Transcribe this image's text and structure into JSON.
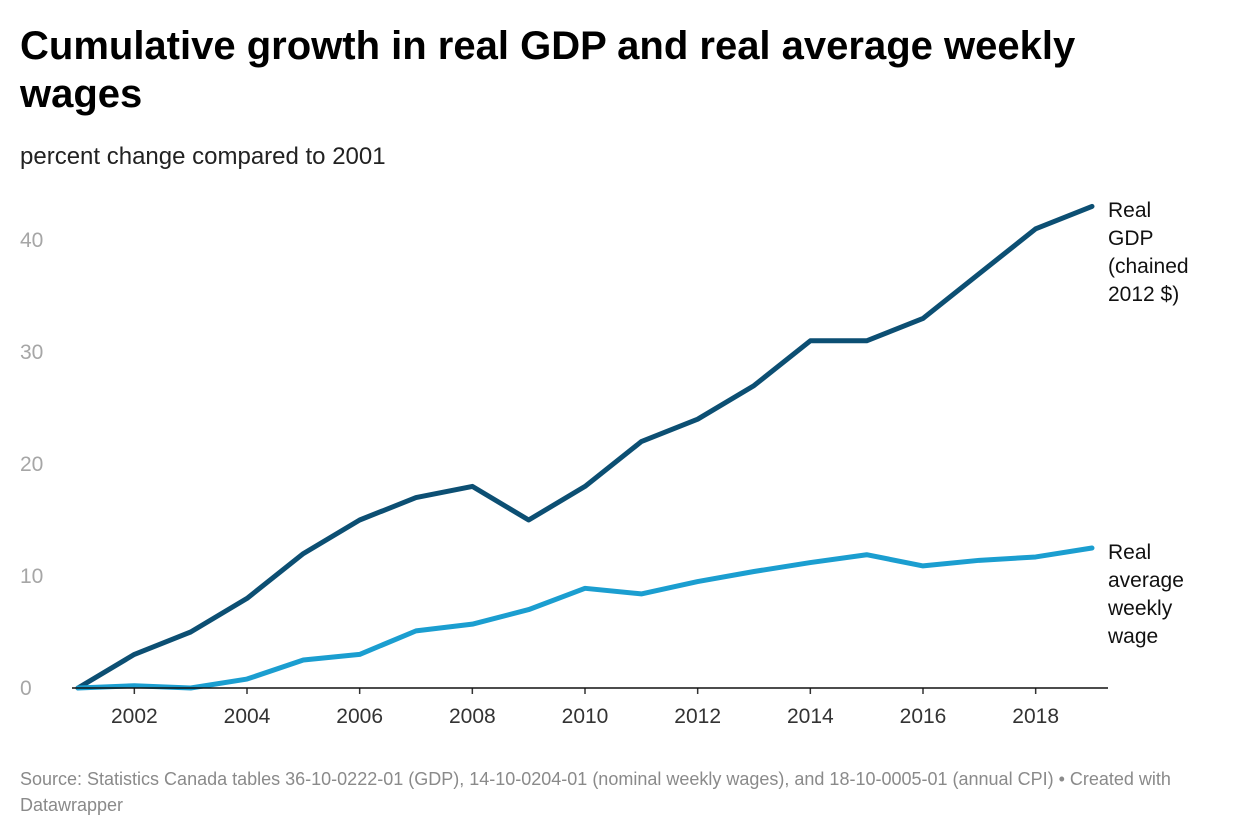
{
  "chart_data": {
    "type": "line",
    "title": "Cumulative growth in real GDP and real average weekly wages",
    "subtitle": "percent change compared to 2001",
    "x": [
      2001,
      2002,
      2003,
      2004,
      2005,
      2006,
      2007,
      2008,
      2009,
      2010,
      2011,
      2012,
      2013,
      2014,
      2015,
      2016,
      2017,
      2018,
      2019
    ],
    "series": [
      {
        "name": "Real GDP (chained 2012 $)",
        "label_lines": [
          "Real",
          "GDP",
          "(chained",
          "2012 $)"
        ],
        "color": "#0c4f73",
        "values": [
          0,
          3,
          5,
          8,
          12,
          15,
          17,
          18,
          15,
          18,
          22,
          24,
          27,
          31,
          31,
          33,
          37,
          41,
          43
        ]
      },
      {
        "name": "Real average weekly wage",
        "label_lines": [
          "Real",
          "average",
          "weekly",
          "wage"
        ],
        "color": "#1b9ed0",
        "values": [
          0,
          0.2,
          0,
          0.8,
          2.5,
          3,
          5.1,
          5.7,
          7,
          8.9,
          8.4,
          9.5,
          10.4,
          11.2,
          11.9,
          10.9,
          11.4,
          11.7,
          12.5
        ]
      }
    ],
    "xticks": [
      2002,
      2004,
      2006,
      2008,
      2010,
      2012,
      2014,
      2016,
      2018
    ],
    "yticks": [
      0,
      10,
      20,
      30,
      40
    ],
    "xlim": [
      2001,
      2019
    ],
    "ylim": [
      0,
      43
    ],
    "grid": false,
    "legend": "inline-right"
  },
  "footer": {
    "text": "Source: Statistics Canada tables 36-10-0222-01 (GDP), 14-10-0204-01 (nominal weekly wages), and 18-10-0005-01 (annual CPI) • Created with Datawrapper"
  }
}
